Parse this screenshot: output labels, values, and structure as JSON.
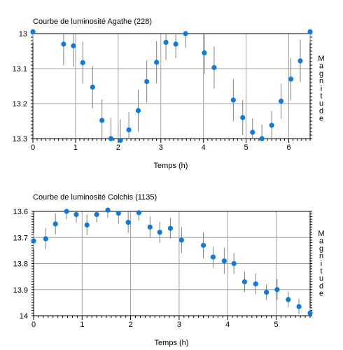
{
  "chart_data": [
    {
      "type": "scatter",
      "title": "Courbe de luminosité Agathe (228)",
      "xlabel": "Temps (h)",
      "ylabel": "Magnitude",
      "xlim": [
        0,
        6.5
      ],
      "ylim": [
        13.0,
        13.3
      ],
      "y_inverted": true,
      "grid": true,
      "point_color": "#0a7be0",
      "errorbar_color": "#808080",
      "x_ticks": [
        "0",
        "1",
        "2",
        "3",
        "4",
        "5",
        "6"
      ],
      "y_ticks": [
        "13",
        "13.1",
        "13.2",
        "13.3"
      ],
      "points": [
        {
          "x": 0.0,
          "y": 12.995,
          "err": 0.03
        },
        {
          "x": 0.72,
          "y": 13.03,
          "err": 0.06
        },
        {
          "x": 0.95,
          "y": 13.035,
          "err": 0.06
        },
        {
          "x": 1.17,
          "y": 13.083,
          "err": 0.06
        },
        {
          "x": 1.4,
          "y": 13.153,
          "err": 0.06
        },
        {
          "x": 1.62,
          "y": 13.248,
          "err": 0.06
        },
        {
          "x": 1.83,
          "y": 13.3,
          "err": 0.06
        },
        {
          "x": 2.05,
          "y": 13.305,
          "err": 0.06
        },
        {
          "x": 2.25,
          "y": 13.275,
          "err": 0.05
        },
        {
          "x": 2.47,
          "y": 13.22,
          "err": 0.06
        },
        {
          "x": 2.67,
          "y": 13.137,
          "err": 0.06
        },
        {
          "x": 2.9,
          "y": 13.082,
          "err": 0.06
        },
        {
          "x": 3.12,
          "y": 13.025,
          "err": 0.05
        },
        {
          "x": 3.35,
          "y": 13.03,
          "err": 0.04
        },
        {
          "x": 3.58,
          "y": 13.0,
          "err": 0.04
        },
        {
          "x": 4.02,
          "y": 13.055,
          "err": 0.06
        },
        {
          "x": 4.25,
          "y": 13.097,
          "err": 0.06
        },
        {
          "x": 4.7,
          "y": 13.19,
          "err": 0.06
        },
        {
          "x": 4.92,
          "y": 13.24,
          "err": 0.05
        },
        {
          "x": 5.15,
          "y": 13.282,
          "err": 0.04
        },
        {
          "x": 5.37,
          "y": 13.3,
          "err": 0.04
        },
        {
          "x": 5.6,
          "y": 13.262,
          "err": 0.04
        },
        {
          "x": 5.82,
          "y": 13.193,
          "err": 0.05
        },
        {
          "x": 6.05,
          "y": 13.13,
          "err": 0.06
        },
        {
          "x": 6.27,
          "y": 13.078,
          "err": 0.06
        },
        {
          "x": 6.5,
          "y": 12.995,
          "err": 0.03
        }
      ]
    },
    {
      "type": "scatter",
      "title": "Courbe de luminosité Colchis (1135)",
      "xlabel": "Temps (h)",
      "ylabel": "Magnitude",
      "xlim": [
        0,
        5.7
      ],
      "ylim": [
        13.6,
        14.0
      ],
      "y_inverted": true,
      "grid": true,
      "point_color": "#0a7be0",
      "errorbar_color": "#808080",
      "x_ticks": [
        "0",
        "1",
        "2",
        "3",
        "4",
        "5"
      ],
      "y_ticks": [
        "13.6",
        "13.7",
        "13.8",
        "13.9",
        "14"
      ],
      "points": [
        {
          "x": 0.0,
          "y": 13.713,
          "err": 0.03
        },
        {
          "x": 0.25,
          "y": 13.705,
          "err": 0.04
        },
        {
          "x": 0.45,
          "y": 13.648,
          "err": 0.04
        },
        {
          "x": 0.68,
          "y": 13.6,
          "err": 0.03
        },
        {
          "x": 0.88,
          "y": 13.612,
          "err": 0.03
        },
        {
          "x": 1.1,
          "y": 13.652,
          "err": 0.04
        },
        {
          "x": 1.3,
          "y": 13.612,
          "err": 0.03
        },
        {
          "x": 1.53,
          "y": 13.595,
          "err": 0.03
        },
        {
          "x": 1.75,
          "y": 13.607,
          "err": 0.04
        },
        {
          "x": 1.95,
          "y": 13.642,
          "err": 0.04
        },
        {
          "x": 2.17,
          "y": 13.605,
          "err": 0.03
        },
        {
          "x": 2.4,
          "y": 13.66,
          "err": 0.04
        },
        {
          "x": 2.6,
          "y": 13.68,
          "err": 0.04
        },
        {
          "x": 2.82,
          "y": 13.665,
          "err": 0.04
        },
        {
          "x": 3.05,
          "y": 13.71,
          "err": 0.05
        },
        {
          "x": 3.5,
          "y": 13.73,
          "err": 0.05
        },
        {
          "x": 3.7,
          "y": 13.775,
          "err": 0.04
        },
        {
          "x": 3.93,
          "y": 13.79,
          "err": 0.05
        },
        {
          "x": 4.13,
          "y": 13.8,
          "err": 0.04
        },
        {
          "x": 4.35,
          "y": 13.87,
          "err": 0.04
        },
        {
          "x": 4.58,
          "y": 13.878,
          "err": 0.04
        },
        {
          "x": 4.8,
          "y": 13.91,
          "err": 0.03
        },
        {
          "x": 5.02,
          "y": 13.9,
          "err": 0.04
        },
        {
          "x": 5.25,
          "y": 13.938,
          "err": 0.03
        },
        {
          "x": 5.47,
          "y": 13.965,
          "err": 0.03
        },
        {
          "x": 5.7,
          "y": 13.99,
          "err": 0.02
        }
      ]
    }
  ]
}
